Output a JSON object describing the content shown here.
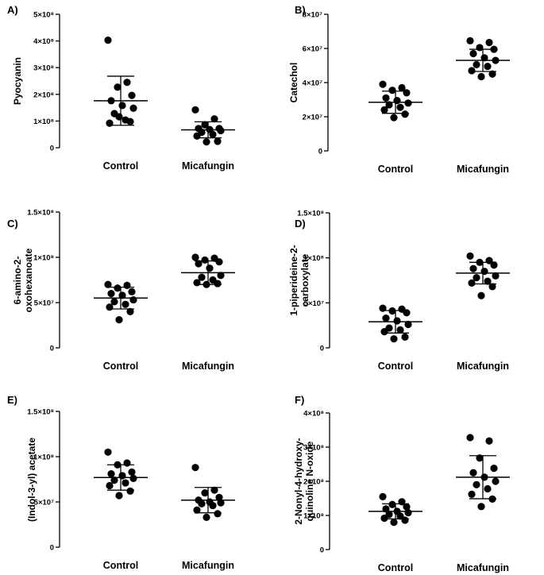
{
  "chart_data": [
    {
      "type": "scatter",
      "panel": "A)",
      "ylabel": [
        "Pyocyanin"
      ],
      "categories": [
        "Control",
        "Micafungin"
      ],
      "ylim": [
        0,
        500000000
      ],
      "yticks": [
        0,
        100000000,
        200000000,
        300000000,
        400000000,
        500000000
      ],
      "ytick_labels": [
        "0",
        "1×10⁸",
        "2×10⁸",
        "3×10⁸",
        "4×10⁸",
        "5×10⁸"
      ],
      "series": [
        {
          "category": "Control",
          "mean": 176000000,
          "sd": 92000000,
          "values": [
            403000000,
            245000000,
            227000000,
            196000000,
            176000000,
            158000000,
            148000000,
            128000000,
            104000000,
            92000000,
            98000000,
            116000000
          ]
        },
        {
          "category": "Micafungin",
          "mean": 67000000,
          "sd": 30000000,
          "values": [
            142000000,
            108000000,
            86000000,
            72000000,
            72000000,
            68000000,
            64000000,
            58000000,
            50000000,
            44000000,
            24000000,
            22000000
          ]
        }
      ]
    },
    {
      "type": "scatter",
      "panel": "B)",
      "ylabel": [
        "Catechol"
      ],
      "categories": [
        "Control",
        "Micafungin"
      ],
      "ylim": [
        0,
        80000000
      ],
      "yticks": [
        0,
        20000000,
        40000000,
        60000000,
        80000000
      ],
      "ytick_labels": [
        "0",
        "2×10⁷",
        "4×10⁷",
        "6×10⁷",
        "8×10⁷"
      ],
      "series": [
        {
          "category": "Control",
          "mean": 28500000,
          "sd": 6500000,
          "values": [
            39000000,
            37000000,
            35500000,
            34000000,
            31000000,
            29500000,
            28000000,
            27000000,
            25500000,
            24000000,
            21500000,
            19500000
          ]
        },
        {
          "category": "Micafungin",
          "mean": 53000000,
          "sd": 6500000,
          "values": [
            64500000,
            63500000,
            60500000,
            59500000,
            57000000,
            54500000,
            53000000,
            50500000,
            49500000,
            47000000,
            45000000,
            43500000
          ]
        }
      ]
    },
    {
      "type": "scatter",
      "panel": "C)",
      "ylabel": [
        "6-amino-2-",
        "oxohexanoate"
      ],
      "categories": [
        "Control",
        "Micafungin"
      ],
      "ylim": [
        0,
        150000000
      ],
      "yticks": [
        0,
        50000000,
        100000000,
        150000000
      ],
      "ytick_labels": [
        "0",
        "5×10⁷",
        "1×10⁸",
        "1.5×10⁸"
      ],
      "series": [
        {
          "category": "Control",
          "mean": 55000000,
          "sd": 12000000,
          "values": [
            70000000,
            69000000,
            66000000,
            62000000,
            60000000,
            58000000,
            53000000,
            51000000,
            48000000,
            45000000,
            40000000,
            31000000
          ]
        },
        {
          "category": "Micafungin",
          "mean": 83000000,
          "sd": 13000000,
          "values": [
            100000000,
            99000000,
            97000000,
            95000000,
            93000000,
            88000000,
            80000000,
            78000000,
            75000000,
            72000000,
            71000000,
            70000000
          ]
        }
      ]
    },
    {
      "type": "scatter",
      "panel": "D)",
      "ylabel": [
        "1-piperideine-2-",
        "carboxylate"
      ],
      "categories": [
        "Control",
        "Micafungin"
      ],
      "ylim": [
        0,
        150000000
      ],
      "yticks": [
        0,
        50000000,
        100000000,
        150000000
      ],
      "ytick_labels": [
        "0",
        "5×10⁷",
        "1×10⁸",
        "1.5×10⁸"
      ],
      "series": [
        {
          "category": "Control",
          "mean": 29000000,
          "sd": 12500000,
          "values": [
            44000000,
            43000000,
            41000000,
            39000000,
            33000000,
            30000000,
            26000000,
            22000000,
            20000000,
            18000000,
            12000000,
            10000000
          ]
        },
        {
          "category": "Micafungin",
          "mean": 83000000,
          "sd": 12000000,
          "values": [
            102000000,
            97000000,
            95000000,
            92000000,
            88000000,
            85000000,
            80000000,
            78000000,
            74000000,
            72000000,
            68000000,
            58000000
          ]
        }
      ]
    },
    {
      "type": "scatter",
      "panel": "E)",
      "ylabel": [
        "(Indol-3-yl) acetate"
      ],
      "categories": [
        "Control",
        "Micafungin"
      ],
      "ylim": [
        0,
        150000000
      ],
      "yticks": [
        0,
        50000000,
        100000000,
        150000000
      ],
      "ytick_labels": [
        "0",
        "5×10⁷",
        "1×10⁸",
        "1.5×10⁸"
      ],
      "series": [
        {
          "category": "Control",
          "mean": 77000000,
          "sd": 14000000,
          "values": [
            105000000,
            93000000,
            91000000,
            83000000,
            81000000,
            79000000,
            76000000,
            74000000,
            71000000,
            68000000,
            62000000,
            57000000
          ]
        },
        {
          "category": "Micafungin",
          "mean": 52000000,
          "sd": 14000000,
          "values": [
            88000000,
            63000000,
            60000000,
            55000000,
            52000000,
            50000000,
            49000000,
            48000000,
            46000000,
            41000000,
            37000000,
            33000000
          ]
        }
      ]
    },
    {
      "type": "scatter",
      "panel": "F)",
      "ylabel": [
        "2-Nonyl-4-hydroxy-",
        "quinoline N-oxide"
      ],
      "categories": [
        "Control",
        "Micafungin"
      ],
      "ylim": [
        0,
        400000000
      ],
      "yticks": [
        0,
        100000000,
        200000000,
        300000000,
        400000000
      ],
      "ytick_labels": [
        "0",
        "1×10⁸",
        "2×10⁸",
        "3×10⁸",
        "4×10⁸"
      ],
      "series": [
        {
          "category": "Control",
          "mean": 112000000,
          "sd": 22000000,
          "values": [
            155000000,
            140000000,
            132000000,
            125000000,
            119000000,
            112000000,
            108000000,
            103000000,
            98000000,
            92000000,
            86000000,
            80000000
          ]
        },
        {
          "category": "Micafungin",
          "mean": 212000000,
          "sd": 63000000,
          "values": [
            328000000,
            318000000,
            268000000,
            238000000,
            225000000,
            212000000,
            200000000,
            190000000,
            178000000,
            162000000,
            148000000,
            126000000
          ]
        }
      ]
    }
  ]
}
